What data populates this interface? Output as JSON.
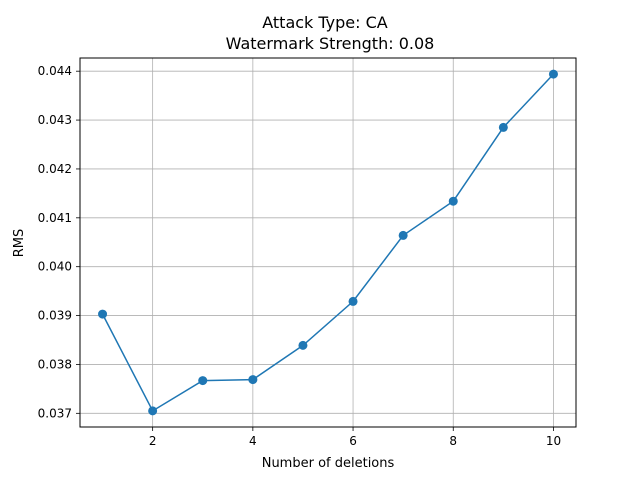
{
  "chart_data": {
    "type": "line",
    "title": "Attack Type: CA",
    "subtitle": "Watermark Strength: 0.08",
    "xlabel": "Number of deletions",
    "ylabel": "RMS",
    "x": [
      1,
      2,
      3,
      4,
      5,
      6,
      7,
      8,
      9,
      10
    ],
    "series": [
      {
        "values": [
          0.03903,
          0.03705,
          0.03767,
          0.03769,
          0.03839,
          0.03929,
          0.04064,
          0.04134,
          0.04285,
          0.04394
        ],
        "color": "#1f77b4",
        "marker": "circle"
      }
    ],
    "xlim": [
      0.55,
      10.45
    ],
    "ylim": [
      0.03672,
      0.04427
    ],
    "xticks": [
      2,
      4,
      6,
      8,
      10
    ],
    "xtick_labels": [
      "2",
      "4",
      "6",
      "8",
      "10"
    ],
    "yticks": [
      0.037,
      0.038,
      0.039,
      0.04,
      0.041,
      0.042,
      0.043,
      0.044
    ],
    "ytick_labels": [
      "0.037",
      "0.038",
      "0.039",
      "0.040",
      "0.041",
      "0.042",
      "0.043",
      "0.044"
    ],
    "grid": true
  }
}
